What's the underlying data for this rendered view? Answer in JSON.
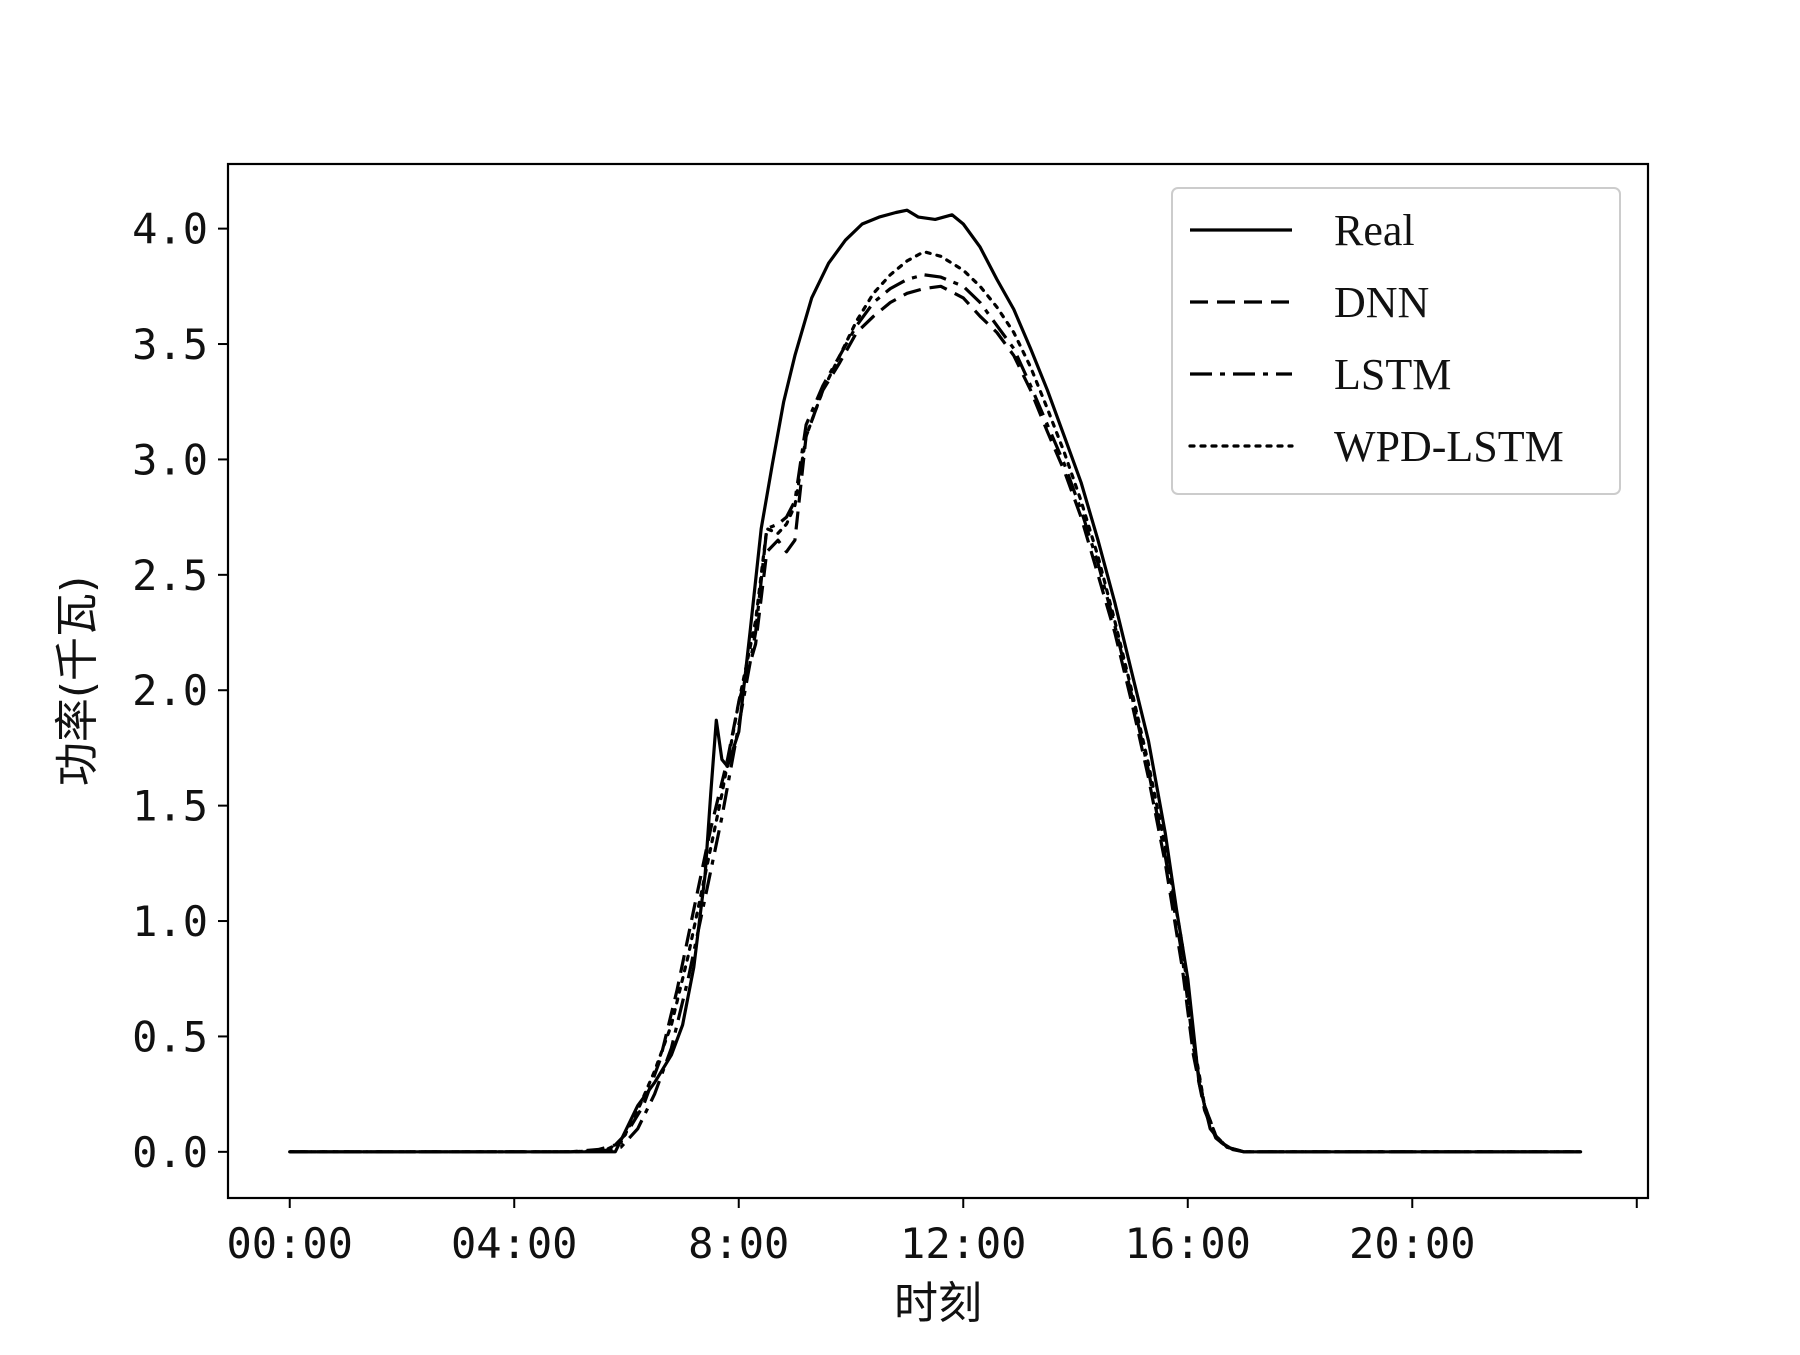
{
  "chart_data": {
    "type": "line",
    "title": "",
    "xlabel": "时刻",
    "ylabel": "功率(千瓦)",
    "xlim": [
      -1.1,
      24.2
    ],
    "ylim": [
      -0.2,
      4.28
    ],
    "x_ticks": [
      0,
      4,
      8,
      12,
      16,
      20
    ],
    "x_tick_labels": [
      "00:00",
      "04:00",
      "8:00",
      "12:00",
      "16:00",
      "20:00"
    ],
    "y_ticks": [
      0.0,
      0.5,
      1.0,
      1.5,
      2.0,
      2.5,
      3.0,
      3.5,
      4.0
    ],
    "y_tick_labels": [
      "0.0",
      "0.5",
      "1.0",
      "1.5",
      "2.0",
      "2.5",
      "3.0",
      "3.5",
      "4.0"
    ],
    "grid": false,
    "legend_position": "top-right",
    "series": [
      {
        "name": "Real",
        "style": "solid",
        "x": [
          0,
          5.0,
          5.8,
          6.0,
          6.2,
          6.5,
          6.8,
          7.0,
          7.2,
          7.4,
          7.5,
          7.6,
          7.7,
          7.8,
          8.0,
          8.2,
          8.4,
          8.6,
          8.8,
          9.0,
          9.3,
          9.6,
          9.9,
          10.2,
          10.5,
          10.8,
          11.0,
          11.2,
          11.5,
          11.8,
          12.0,
          12.3,
          12.6,
          12.9,
          13.2,
          13.5,
          13.8,
          14.1,
          14.4,
          14.7,
          15.0,
          15.3,
          15.6,
          15.8,
          16.0,
          16.2,
          16.4,
          16.6,
          16.8,
          17.0,
          18.0,
          23.0
        ],
        "y": [
          0,
          0,
          0,
          0.1,
          0.2,
          0.3,
          0.42,
          0.55,
          0.8,
          1.2,
          1.55,
          1.87,
          1.7,
          1.67,
          1.82,
          2.25,
          2.7,
          2.98,
          3.25,
          3.45,
          3.7,
          3.85,
          3.95,
          4.02,
          4.05,
          4.07,
          4.08,
          4.05,
          4.04,
          4.06,
          4.02,
          3.92,
          3.78,
          3.65,
          3.48,
          3.3,
          3.1,
          2.9,
          2.65,
          2.38,
          2.08,
          1.78,
          1.38,
          1.05,
          0.75,
          0.3,
          0.1,
          0.04,
          0.01,
          0,
          0,
          0
        ]
      },
      {
        "name": "DNN",
        "style": "dashed",
        "x": [
          0,
          5.0,
          5.5,
          5.8,
          6.0,
          6.3,
          6.6,
          6.9,
          7.2,
          7.5,
          7.8,
          8.0,
          8.3,
          8.5,
          8.7,
          8.85,
          9.0,
          9.2,
          9.5,
          9.8,
          10.1,
          10.4,
          10.7,
          11.0,
          11.3,
          11.6,
          12.0,
          12.3,
          12.6,
          12.9,
          13.2,
          13.5,
          13.8,
          14.1,
          14.4,
          14.7,
          15.0,
          15.3,
          15.6,
          15.9,
          16.1,
          16.3,
          16.5,
          16.7,
          17.0,
          23.0
        ],
        "y": [
          0,
          0,
          0.01,
          0.03,
          0.08,
          0.2,
          0.4,
          0.7,
          1.05,
          1.4,
          1.7,
          1.95,
          2.2,
          2.6,
          2.65,
          2.6,
          2.65,
          3.1,
          3.3,
          3.42,
          3.55,
          3.62,
          3.68,
          3.72,
          3.74,
          3.75,
          3.7,
          3.62,
          3.55,
          3.45,
          3.3,
          3.12,
          2.95,
          2.75,
          2.5,
          2.25,
          1.95,
          1.62,
          1.25,
          0.8,
          0.42,
          0.18,
          0.06,
          0.02,
          0,
          0
        ]
      },
      {
        "name": "LSTM",
        "style": "dashdot",
        "x": [
          0,
          5.0,
          5.6,
          5.9,
          6.2,
          6.5,
          6.8,
          7.1,
          7.4,
          7.7,
          8.0,
          8.3,
          8.5,
          8.7,
          8.85,
          9.0,
          9.2,
          9.5,
          9.8,
          10.1,
          10.4,
          10.7,
          11.0,
          11.3,
          11.6,
          12.0,
          12.3,
          12.6,
          12.9,
          13.2,
          13.5,
          13.8,
          14.1,
          14.4,
          14.7,
          15.0,
          15.3,
          15.6,
          15.9,
          16.1,
          16.3,
          16.5,
          16.7,
          17.0,
          23.0
        ],
        "y": [
          0,
          0,
          0.005,
          0.02,
          0.1,
          0.25,
          0.45,
          0.75,
          1.1,
          1.45,
          1.85,
          2.25,
          2.7,
          2.72,
          2.75,
          2.82,
          3.15,
          3.32,
          3.45,
          3.58,
          3.68,
          3.74,
          3.78,
          3.8,
          3.79,
          3.75,
          3.68,
          3.58,
          3.48,
          3.32,
          3.15,
          2.98,
          2.78,
          2.55,
          2.28,
          1.98,
          1.65,
          1.28,
          0.85,
          0.45,
          0.2,
          0.07,
          0.02,
          0,
          0
        ]
      },
      {
        "name": "WPD-LSTM",
        "style": "dotted",
        "x": [
          0,
          5.0,
          5.6,
          5.9,
          6.2,
          6.5,
          6.8,
          7.1,
          7.4,
          7.7,
          8.0,
          8.3,
          8.5,
          8.7,
          8.85,
          9.0,
          9.2,
          9.5,
          9.8,
          10.1,
          10.4,
          10.7,
          11.0,
          11.3,
          11.6,
          12.0,
          12.3,
          12.6,
          12.9,
          13.2,
          13.5,
          13.8,
          14.1,
          14.4,
          14.7,
          15.0,
          15.3,
          15.6,
          15.9,
          16.1,
          16.3,
          16.5,
          16.7,
          17.0,
          23.0
        ],
        "y": [
          0,
          0,
          0.005,
          0.04,
          0.18,
          0.35,
          0.55,
          0.85,
          1.2,
          1.55,
          1.95,
          2.3,
          2.7,
          2.68,
          2.72,
          2.8,
          3.1,
          3.3,
          3.45,
          3.6,
          3.72,
          3.8,
          3.86,
          3.9,
          3.88,
          3.82,
          3.75,
          3.66,
          3.55,
          3.4,
          3.22,
          3.03,
          2.82,
          2.58,
          2.3,
          2.0,
          1.68,
          1.32,
          0.9,
          0.48,
          0.2,
          0.07,
          0.02,
          0,
          0
        ]
      }
    ]
  }
}
